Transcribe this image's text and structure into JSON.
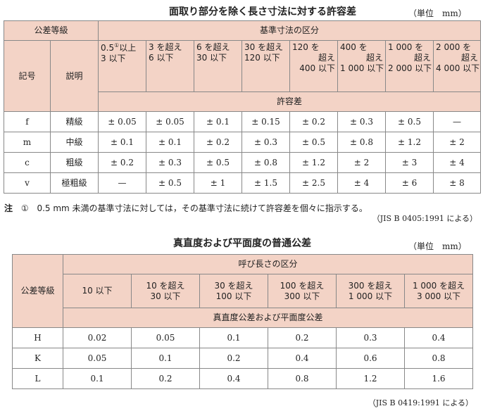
{
  "table1": {
    "title": "面取り部分を除く長さ寸法に対する許容差",
    "unit": "（単位　mm）",
    "h_grade": "公差等級",
    "h_range": "基準寸法の区分",
    "h_symbol": "記号",
    "h_desc": "説明",
    "h_tol": "許容差",
    "ranges": [
      {
        "l1": "0.5",
        "sup": "①",
        "l1b": "以上",
        "l2": "3 以下"
      },
      {
        "l1": "3 を超え",
        "l2": "6 以下"
      },
      {
        "l1": "6 を超え",
        "l2": "30 以下"
      },
      {
        "l1": "30 を超え",
        "l2": "120 以下"
      },
      {
        "l1": "120 を",
        "l2": "超え",
        "l3": "400 以下"
      },
      {
        "l1": "400 を",
        "l2": "超え",
        "l3": "1 000 以下"
      },
      {
        "l1": "1 000 を",
        "l2": "超え",
        "l3": "2 000 以下"
      },
      {
        "l1": "2 000 を",
        "l2": "超え",
        "l3": "4 000 以下"
      }
    ],
    "rows": [
      {
        "symbol": "f",
        "desc": "精級",
        "vals": [
          "± 0.05",
          "± 0.05",
          "± 0.1",
          "± 0.15",
          "± 0.2",
          "± 0.3",
          "± 0.5",
          "—"
        ]
      },
      {
        "symbol": "m",
        "desc": "中級",
        "vals": [
          "± 0.1",
          "± 0.1",
          "± 0.2",
          "± 0.3",
          "± 0.5",
          "± 0.8",
          "± 1.2",
          "± 2"
        ]
      },
      {
        "symbol": "c",
        "desc": "粗級",
        "vals": [
          "± 0.2",
          "± 0.3",
          "± 0.5",
          "± 0.8",
          "± 1.2",
          "± 2",
          "± 3",
          "± 4"
        ]
      },
      {
        "symbol": "v",
        "desc": "極粗級",
        "vals": [
          "—",
          "± 0.5",
          "± 1",
          "± 1.5",
          "± 2.5",
          "± 4",
          "± 6",
          "± 8"
        ]
      }
    ],
    "note_label": "注",
    "note_mark": "①",
    "note_text": "0.5 mm 未満の基準寸法に対しては，その基準寸法に続けて許容差を個々に指示する。",
    "cite": "（JIS B 0405:1991 による）"
  },
  "table2": {
    "title": "真直度および平面度の普通公差",
    "unit": "（単位　mm）",
    "h_grade": "公差等級",
    "h_range": "呼び長さの区分",
    "h_tol": "真直度公差および平面度公差",
    "ranges": [
      {
        "l1": "10 以下"
      },
      {
        "l1": "10 を超え",
        "l2": "30 以下"
      },
      {
        "l1": "30 を超え",
        "l2": "100 以下"
      },
      {
        "l1": "100 を超え",
        "l2": "300 以下"
      },
      {
        "l1": "300 を超え",
        "l2": "1 000 以下"
      },
      {
        "l1": "1 000 を超え",
        "l2": "3 000 以下"
      }
    ],
    "rows": [
      {
        "grade": "H",
        "vals": [
          "0.02",
          "0.05",
          "0.1",
          "0.2",
          "0.3",
          "0.4"
        ]
      },
      {
        "grade": "K",
        "vals": [
          "0.05",
          "0.1",
          "0.2",
          "0.4",
          "0.6",
          "0.8"
        ]
      },
      {
        "grade": "L",
        "vals": [
          "0.1",
          "0.2",
          "0.4",
          "0.8",
          "1.2",
          "1.6"
        ]
      }
    ],
    "cite": "（JIS B 0419:1991 による）"
  }
}
